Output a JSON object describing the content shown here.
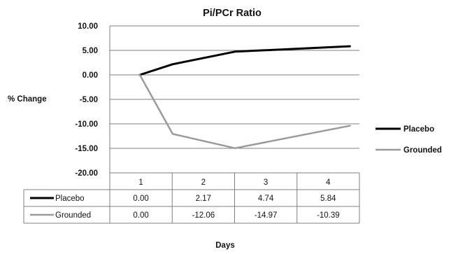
{
  "chart_data": {
    "type": "line",
    "title": "Pi/PCr Ratio",
    "xlabel": "Days",
    "ylabel": "% Change",
    "categories": [
      "1",
      "2",
      "3",
      "4"
    ],
    "ylim": [
      -20,
      10
    ],
    "y_ticks": [
      "10.00",
      "5.00",
      "0.00",
      "-5.00",
      "-10.00",
      "-15.00",
      "-20.00"
    ],
    "grid": true,
    "legend_position": "right",
    "series": [
      {
        "name": "Placebo",
        "color": "#000000",
        "values": [
          0.0,
          2.17,
          4.74,
          5.84
        ],
        "labels": [
          "0.00",
          "2.17",
          "4.74",
          "5.84"
        ]
      },
      {
        "name": "Grounded",
        "color": "#9a9a9a",
        "values": [
          0.0,
          -12.06,
          -14.97,
          -10.39
        ],
        "labels": [
          "0.00",
          "-12.06",
          "-14.97",
          "-10.39"
        ]
      }
    ]
  }
}
